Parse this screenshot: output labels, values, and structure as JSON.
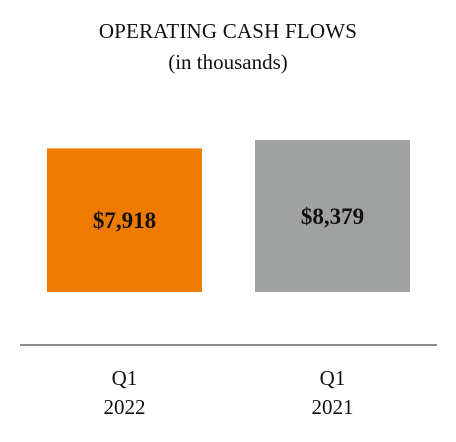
{
  "chart_data": {
    "type": "bar",
    "title": "OPERATING CASH FLOWS",
    "subtitle": "(in thousands)",
    "categories": [
      [
        "Q1",
        "2022"
      ],
      [
        "Q1",
        "2021"
      ]
    ],
    "values": [
      7918,
      8379
    ],
    "data_labels": [
      "$7,918",
      "$8,379"
    ],
    "colors": [
      "#ee7b00",
      "#a0a2a1"
    ],
    "axis_line_color": "#8c8c8c",
    "xlabel": "",
    "ylabel": "",
    "ylim": [
      0,
      8379
    ],
    "grid": false,
    "legend": "none"
  }
}
